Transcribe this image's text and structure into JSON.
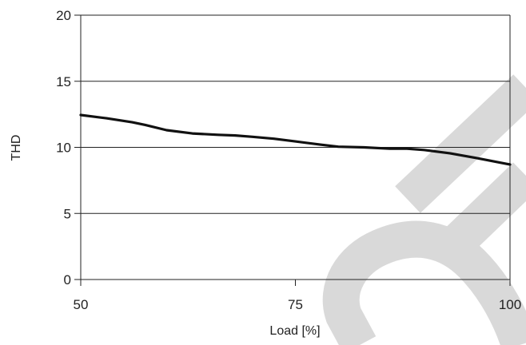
{
  "chart_data": {
    "type": "line",
    "title": "",
    "xlabel": "Load [%]",
    "ylabel": "THD",
    "xlim": [
      50,
      100
    ],
    "ylim": [
      0,
      20
    ],
    "x_ticks": [
      50,
      75,
      100
    ],
    "y_ticks": [
      0,
      5,
      10,
      15,
      20
    ],
    "grid": "horizontal",
    "legend": "none",
    "series": [
      {
        "x": [
          50,
          53,
          56,
          57.5,
          60,
          63,
          66,
          68,
          70,
          72.5,
          75,
          78,
          80,
          83,
          86,
          88,
          90,
          93,
          96,
          100
        ],
        "y": [
          12.45,
          12.2,
          11.9,
          11.7,
          11.3,
          11.05,
          10.95,
          10.9,
          10.8,
          10.65,
          10.45,
          10.2,
          10.05,
          10.0,
          9.9,
          9.9,
          9.8,
          9.55,
          9.2,
          8.7
        ]
      }
    ],
    "colors": {
      "line": "#111111",
      "grid": "#222222",
      "axis": "#222222",
      "watermark": "#d9d9d9"
    }
  }
}
